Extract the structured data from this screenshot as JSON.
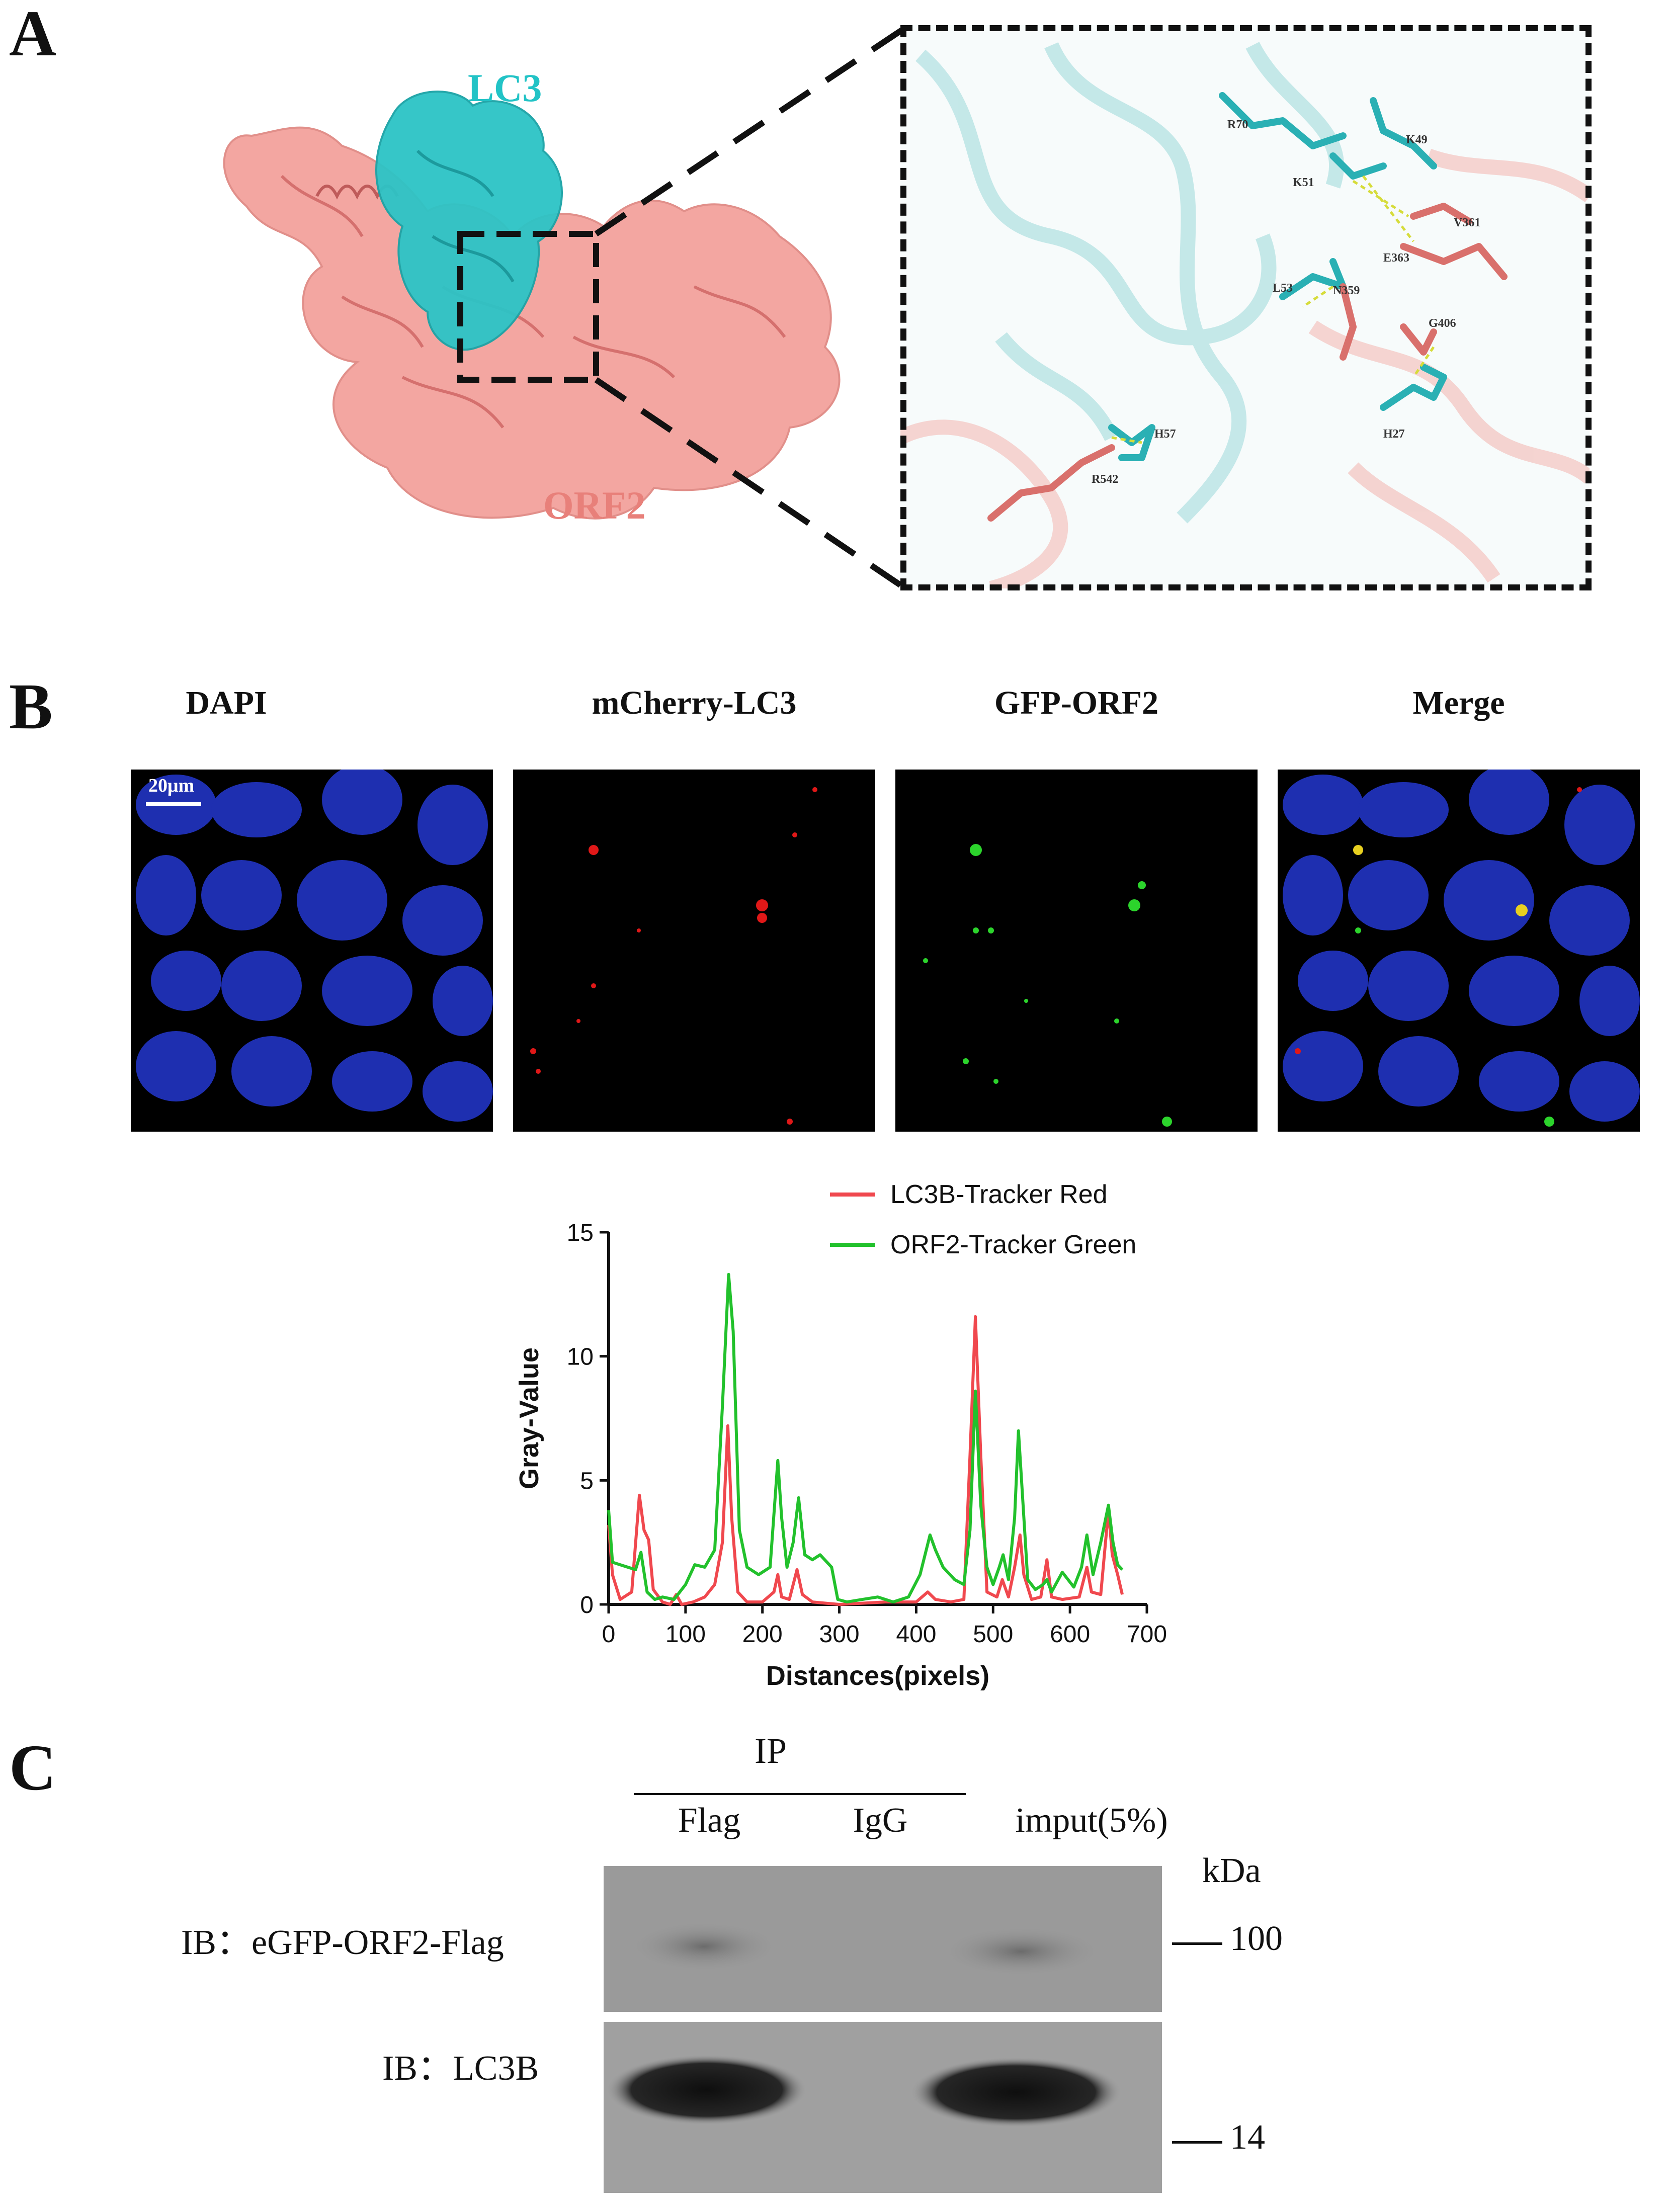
{
  "panels": {
    "a": {
      "letter": "A",
      "protein_labels": {
        "lc3": "LC3",
        "orf2": "ORF2"
      },
      "residues": [
        "R70",
        "K49",
        "K51",
        "V361",
        "E363",
        "L53",
        "N359",
        "G406",
        "H27",
        "H57",
        "R542"
      ],
      "colors": {
        "lc3": "#22c3c6",
        "orf2": "#e8807a"
      }
    },
    "b": {
      "letter": "B",
      "channels": [
        "DAPI",
        "mCherry-LC3",
        "GFP-ORF2",
        "Merge"
      ],
      "scale_bar": "20μm"
    },
    "c": {
      "letter": "C",
      "ip_label": "IP",
      "lanes": [
        "Flag",
        "IgG",
        "imput(5%)"
      ],
      "kda_label": "kDa",
      "blots": [
        {
          "label": "IB：eGFP-ORF2-Flag",
          "marker": "100"
        },
        {
          "label": "IB：LC3B",
          "marker": "14"
        }
      ]
    }
  },
  "chart_data": {
    "type": "line",
    "xlabel": "Distances(pixels)",
    "ylabel": "Gray-Value",
    "xlim": [
      0,
      700
    ],
    "ylim": [
      0,
      15
    ],
    "xticks": [
      0,
      100,
      200,
      300,
      400,
      500,
      600,
      700
    ],
    "yticks": [
      0,
      5,
      10,
      15
    ],
    "legend_position": "top-right",
    "series": [
      {
        "name": "LC3B-Tracker Red",
        "color": "#f0484e",
        "points": [
          [
            0,
            3.2
          ],
          [
            5,
            1.2
          ],
          [
            15,
            0.2
          ],
          [
            30,
            0.5
          ],
          [
            40,
            4.4
          ],
          [
            46,
            3.0
          ],
          [
            52,
            2.6
          ],
          [
            58,
            0.6
          ],
          [
            70,
            0.1
          ],
          [
            80,
            0.0
          ],
          [
            88,
            0.4
          ],
          [
            95,
            0.0
          ],
          [
            110,
            0.1
          ],
          [
            125,
            0.3
          ],
          [
            138,
            0.8
          ],
          [
            148,
            2.5
          ],
          [
            155,
            7.2
          ],
          [
            160,
            3.5
          ],
          [
            168,
            0.5
          ],
          [
            180,
            0.1
          ],
          [
            200,
            0.1
          ],
          [
            215,
            0.5
          ],
          [
            220,
            1.2
          ],
          [
            225,
            0.3
          ],
          [
            235,
            0.2
          ],
          [
            245,
            1.4
          ],
          [
            252,
            0.4
          ],
          [
            265,
            0.1
          ],
          [
            300,
            0.0
          ],
          [
            360,
            0.1
          ],
          [
            400,
            0.1
          ],
          [
            415,
            0.5
          ],
          [
            425,
            0.2
          ],
          [
            445,
            0.1
          ],
          [
            462,
            0.2
          ],
          [
            470,
            6.0
          ],
          [
            477,
            11.6
          ],
          [
            484,
            6.0
          ],
          [
            492,
            0.5
          ],
          [
            505,
            0.3
          ],
          [
            512,
            1.0
          ],
          [
            520,
            0.3
          ],
          [
            528,
            1.5
          ],
          [
            535,
            2.8
          ],
          [
            540,
            1.2
          ],
          [
            550,
            0.2
          ],
          [
            562,
            0.3
          ],
          [
            570,
            1.8
          ],
          [
            576,
            0.3
          ],
          [
            590,
            0.2
          ],
          [
            612,
            0.3
          ],
          [
            622,
            1.5
          ],
          [
            628,
            0.5
          ],
          [
            640,
            0.4
          ],
          [
            650,
            3.8
          ],
          [
            655,
            2.0
          ],
          [
            662,
            1.2
          ],
          [
            668,
            0.4
          ]
        ]
      },
      {
        "name": "ORF2-Tracker Green",
        "color": "#22c12c",
        "points": [
          [
            0,
            3.8
          ],
          [
            5,
            1.7
          ],
          [
            15,
            1.6
          ],
          [
            25,
            1.5
          ],
          [
            35,
            1.4
          ],
          [
            42,
            2.1
          ],
          [
            50,
            0.5
          ],
          [
            60,
            0.2
          ],
          [
            70,
            0.3
          ],
          [
            85,
            0.2
          ],
          [
            100,
            0.8
          ],
          [
            112,
            1.6
          ],
          [
            125,
            1.5
          ],
          [
            138,
            2.2
          ],
          [
            148,
            8.0
          ],
          [
            156,
            13.3
          ],
          [
            162,
            11.0
          ],
          [
            170,
            3.0
          ],
          [
            180,
            1.5
          ],
          [
            195,
            1.2
          ],
          [
            210,
            1.5
          ],
          [
            220,
            5.8
          ],
          [
            225,
            3.5
          ],
          [
            232,
            1.5
          ],
          [
            240,
            2.5
          ],
          [
            247,
            4.3
          ],
          [
            255,
            2.0
          ],
          [
            265,
            1.8
          ],
          [
            275,
            2.0
          ],
          [
            290,
            1.5
          ],
          [
            298,
            0.2
          ],
          [
            310,
            0.1
          ],
          [
            330,
            0.2
          ],
          [
            350,
            0.3
          ],
          [
            370,
            0.1
          ],
          [
            390,
            0.3
          ],
          [
            405,
            1.2
          ],
          [
            418,
            2.8
          ],
          [
            425,
            2.2
          ],
          [
            435,
            1.5
          ],
          [
            450,
            1.0
          ],
          [
            462,
            0.8
          ],
          [
            470,
            3.0
          ],
          [
            477,
            8.6
          ],
          [
            484,
            4.0
          ],
          [
            492,
            1.5
          ],
          [
            500,
            0.8
          ],
          [
            508,
            1.5
          ],
          [
            513,
            2.0
          ],
          [
            520,
            1.0
          ],
          [
            528,
            3.5
          ],
          [
            533,
            7.0
          ],
          [
            538,
            4.5
          ],
          [
            545,
            1.0
          ],
          [
            555,
            0.6
          ],
          [
            565,
            0.8
          ],
          [
            570,
            1.0
          ],
          [
            576,
            0.5
          ],
          [
            590,
            1.3
          ],
          [
            605,
            0.7
          ],
          [
            615,
            1.5
          ],
          [
            622,
            2.8
          ],
          [
            630,
            1.2
          ],
          [
            640,
            2.5
          ],
          [
            650,
            4.0
          ],
          [
            656,
            2.5
          ],
          [
            662,
            1.6
          ],
          [
            668,
            1.4
          ]
        ]
      }
    ]
  }
}
